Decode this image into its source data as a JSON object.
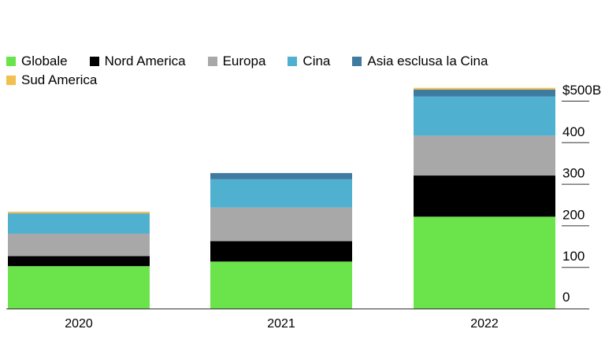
{
  "chart_data": {
    "type": "bar",
    "stacked": true,
    "categories": [
      "2020",
      "2021",
      "2022"
    ],
    "series": [
      {
        "name": "Globale",
        "color": "#6be34b",
        "values": [
          102,
          113,
          221
        ]
      },
      {
        "name": "Nord America",
        "color": "#000000",
        "values": [
          24,
          49,
          99
        ]
      },
      {
        "name": "Europa",
        "color": "#a8a8a8",
        "values": [
          54,
          81,
          96
        ]
      },
      {
        "name": "Cina",
        "color": "#4fb0d0",
        "values": [
          49,
          68,
          94
        ]
      },
      {
        "name": "Asia esclusa la Cina",
        "color": "#3f7aa0",
        "values": [
          0,
          15,
          17
        ]
      },
      {
        "name": "Sud America",
        "color": "#f0c050",
        "values": [
          4,
          0,
          4
        ]
      }
    ],
    "ylim": [
      0,
      500
    ],
    "y_ticks": [
      0,
      100,
      200,
      300,
      400,
      500
    ],
    "y_tick_labels": [
      "0",
      "100",
      "200",
      "300",
      "400",
      "$500B"
    ],
    "y_axis_side": "right",
    "legend_position": "top-left",
    "grid": false,
    "title": "",
    "xlabel": "",
    "ylabel": ""
  }
}
